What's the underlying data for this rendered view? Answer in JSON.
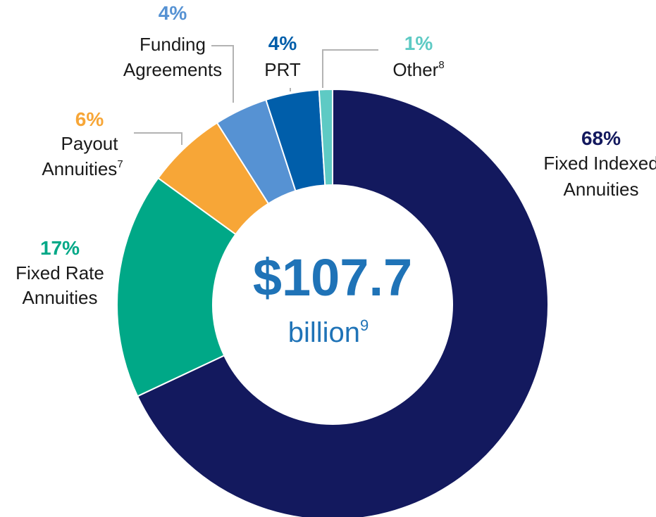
{
  "chart_data": {
    "type": "pie",
    "donut": true,
    "center": {
      "value": "$107.7",
      "unit": "billion",
      "unit_superscript": "9"
    },
    "slices": [
      {
        "label_lines": [
          "Fixed Indexed",
          "Annuities"
        ],
        "superscript": "",
        "value": 68,
        "pct_label": "68%",
        "color": "#13195e"
      },
      {
        "label_lines": [
          "Fixed Rate",
          "Annuities"
        ],
        "superscript": "",
        "value": 17,
        "pct_label": "17%",
        "color": "#00a887"
      },
      {
        "label_lines": [
          "Payout",
          "Annuities"
        ],
        "superscript": "7",
        "value": 6,
        "pct_label": "6%",
        "color": "#f7a637"
      },
      {
        "label_lines": [
          "Funding",
          "Agreements"
        ],
        "superscript": "",
        "value": 4,
        "pct_label": "4%",
        "color": "#5692d3"
      },
      {
        "label_lines": [
          "PRT"
        ],
        "superscript": "",
        "value": 4,
        "pct_label": "4%",
        "color": "#005eaa"
      },
      {
        "label_lines": [
          "Other"
        ],
        "superscript": "8",
        "value": 1,
        "pct_label": "1%",
        "color": "#5ecac4"
      }
    ],
    "center_text_color": "#1f73b7",
    "leader_color": "#b3b3b3"
  }
}
